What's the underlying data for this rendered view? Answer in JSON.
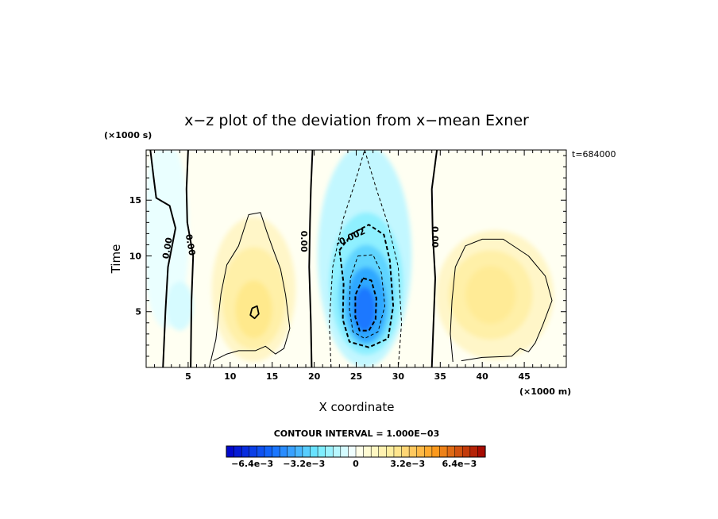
{
  "chart_data": {
    "type": "heatmap",
    "title": "x−z plot of the deviation from x−mean Exner",
    "xlabel": "X coordinate",
    "ylabel": "Time",
    "x_units": "(×1000 m)",
    "y_units": "(×1000 s)",
    "time_stamp": "t=684000",
    "xlim": [
      0,
      50
    ],
    "ylim": [
      0,
      19.5
    ],
    "x_ticks": [
      5,
      10,
      15,
      20,
      25,
      30,
      35,
      40,
      45
    ],
    "y_ticks": [
      5,
      10,
      15
    ],
    "contour_interval_text": "CONTOUR INTERVAL = 1.000E−03",
    "contour_labels": [
      {
        "text": "0.00",
        "x": 2.5,
        "y": 10.7,
        "rot": -80
      },
      {
        "text": "0.00",
        "x": 5.3,
        "y": 11.0,
        "rot": 80
      },
      {
        "text": "0.00",
        "x": 18.8,
        "y": 11.3,
        "rot": 90
      },
      {
        "text": "-0.002",
        "x": 24.3,
        "y": 11.7,
        "rot": -25
      },
      {
        "text": "0.00",
        "x": 34.4,
        "y": 11.7,
        "rot": 90
      }
    ],
    "colorbar": {
      "min": -0.008,
      "max": 0.008,
      "n_bins": 34,
      "tick_labels": [
        {
          "label": "−6.4e−3",
          "value": -0.0064
        },
        {
          "label": "−3.2e−3",
          "value": -0.0032
        },
        {
          "label": "0",
          "value": 0
        },
        {
          "label": "3.2e−3",
          "value": 0.0032
        },
        {
          "label": "6.4e−3",
          "value": 0.0064
        }
      ]
    },
    "colors": {
      "deep_blue": "#0000cc",
      "mid_blue": "#2a8cff",
      "cyan": "#8ff2ff",
      "white": "#ffffff",
      "pale_yellow": "#fff0a6",
      "orange": "#ff9a10",
      "deep_red": "#a00000"
    }
  }
}
